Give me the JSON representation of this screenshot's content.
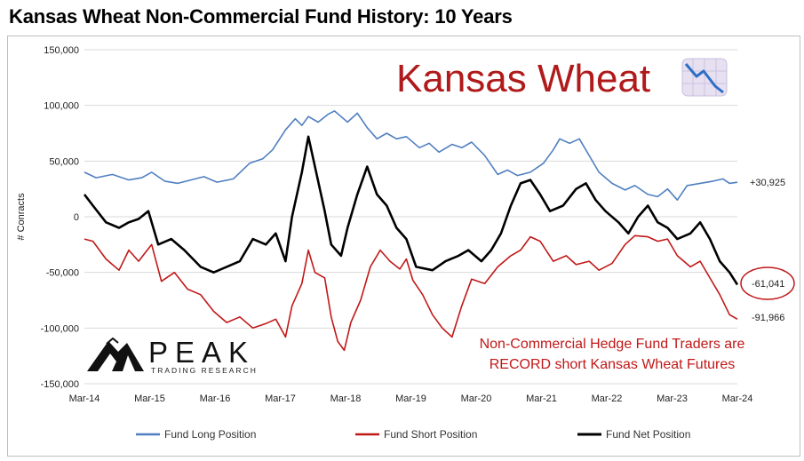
{
  "page": {
    "title": "Kansas Wheat Non-Commercial Fund History: 10 Years"
  },
  "colors": {
    "long": "#4f7fc0",
    "short": "#c01818",
    "net": "#000000",
    "accent_red": "#b01a1a",
    "grid": "#d9d9d9"
  },
  "chart_data": {
    "type": "line",
    "title": "Kansas Wheat Non-Commercial Fund History: 10 Years",
    "xlabel": "",
    "ylabel": "# Conracts",
    "x_tick_labels": [
      "Mar-14",
      "Mar-15",
      "Mar-16",
      "Mar-17",
      "Mar-18",
      "Mar-19",
      "Mar-20",
      "Mar-21",
      "Mar-22",
      "Mar-23",
      "Mar-24"
    ],
    "x_range": [
      2014.17,
      2024.17
    ],
    "y_ticks": [
      150000,
      100000,
      50000,
      0,
      -50000,
      -100000,
      -150000
    ],
    "y_tick_labels": [
      "150,000",
      "100,000",
      "50,000",
      "0",
      "-50,000",
      "-100,000",
      "-150,000"
    ],
    "ylim": [
      -150000,
      150000
    ],
    "grid": "horizontal",
    "legend_position": "bottom",
    "series": [
      {
        "name": "Fund Long Position",
        "color": "#4f7fc0",
        "points": [
          [
            2014.17,
            40000
          ],
          [
            2014.35,
            35000
          ],
          [
            2014.6,
            38000
          ],
          [
            2014.85,
            33000
          ],
          [
            2015.05,
            35000
          ],
          [
            2015.2,
            40000
          ],
          [
            2015.4,
            32000
          ],
          [
            2015.6,
            30000
          ],
          [
            2015.8,
            33000
          ],
          [
            2016.0,
            36000
          ],
          [
            2016.2,
            31000
          ],
          [
            2016.45,
            34000
          ],
          [
            2016.7,
            48000
          ],
          [
            2016.9,
            52000
          ],
          [
            2017.05,
            60000
          ],
          [
            2017.25,
            78000
          ],
          [
            2017.4,
            88000
          ],
          [
            2017.5,
            82000
          ],
          [
            2017.6,
            90000
          ],
          [
            2017.75,
            85000
          ],
          [
            2017.9,
            92000
          ],
          [
            2018.0,
            95000
          ],
          [
            2018.2,
            85000
          ],
          [
            2018.35,
            93000
          ],
          [
            2018.5,
            80000
          ],
          [
            2018.65,
            70000
          ],
          [
            2018.8,
            75000
          ],
          [
            2018.95,
            70000
          ],
          [
            2019.1,
            72000
          ],
          [
            2019.3,
            62000
          ],
          [
            2019.45,
            66000
          ],
          [
            2019.6,
            58000
          ],
          [
            2019.8,
            65000
          ],
          [
            2019.95,
            62000
          ],
          [
            2020.1,
            67000
          ],
          [
            2020.3,
            55000
          ],
          [
            2020.5,
            38000
          ],
          [
            2020.65,
            42000
          ],
          [
            2020.8,
            37000
          ],
          [
            2021.0,
            40000
          ],
          [
            2021.2,
            48000
          ],
          [
            2021.35,
            60000
          ],
          [
            2021.45,
            70000
          ],
          [
            2021.6,
            66000
          ],
          [
            2021.75,
            70000
          ],
          [
            2021.9,
            55000
          ],
          [
            2022.05,
            40000
          ],
          [
            2022.25,
            30000
          ],
          [
            2022.45,
            24000
          ],
          [
            2022.6,
            28000
          ],
          [
            2022.8,
            20000
          ],
          [
            2022.95,
            18000
          ],
          [
            2023.1,
            25000
          ],
          [
            2023.25,
            15000
          ],
          [
            2023.4,
            28000
          ],
          [
            2023.6,
            30000
          ],
          [
            2023.8,
            32000
          ],
          [
            2023.95,
            34000
          ],
          [
            2024.05,
            30000
          ],
          [
            2024.17,
            30925
          ]
        ]
      },
      {
        "name": "Fund Short Position",
        "color": "#c01818",
        "points": [
          [
            2014.17,
            -20000
          ],
          [
            2014.3,
            -22000
          ],
          [
            2014.5,
            -38000
          ],
          [
            2014.7,
            -48000
          ],
          [
            2014.85,
            -30000
          ],
          [
            2015.0,
            -40000
          ],
          [
            2015.2,
            -25000
          ],
          [
            2015.35,
            -58000
          ],
          [
            2015.55,
            -50000
          ],
          [
            2015.75,
            -65000
          ],
          [
            2015.95,
            -70000
          ],
          [
            2016.15,
            -85000
          ],
          [
            2016.35,
            -95000
          ],
          [
            2016.55,
            -90000
          ],
          [
            2016.75,
            -100000
          ],
          [
            2016.95,
            -96000
          ],
          [
            2017.1,
            -92000
          ],
          [
            2017.25,
            -108000
          ],
          [
            2017.35,
            -80000
          ],
          [
            2017.5,
            -60000
          ],
          [
            2017.6,
            -30000
          ],
          [
            2017.7,
            -50000
          ],
          [
            2017.85,
            -55000
          ],
          [
            2017.95,
            -90000
          ],
          [
            2018.05,
            -112000
          ],
          [
            2018.15,
            -120000
          ],
          [
            2018.25,
            -95000
          ],
          [
            2018.4,
            -75000
          ],
          [
            2018.55,
            -45000
          ],
          [
            2018.7,
            -30000
          ],
          [
            2018.85,
            -40000
          ],
          [
            2019.0,
            -47000
          ],
          [
            2019.1,
            -38000
          ],
          [
            2019.2,
            -57000
          ],
          [
            2019.35,
            -70000
          ],
          [
            2019.5,
            -88000
          ],
          [
            2019.65,
            -100000
          ],
          [
            2019.8,
            -108000
          ],
          [
            2019.95,
            -80000
          ],
          [
            2020.1,
            -56000
          ],
          [
            2020.3,
            -60000
          ],
          [
            2020.5,
            -45000
          ],
          [
            2020.7,
            -35000
          ],
          [
            2020.85,
            -30000
          ],
          [
            2021.0,
            -18000
          ],
          [
            2021.15,
            -22000
          ],
          [
            2021.35,
            -40000
          ],
          [
            2021.55,
            -35000
          ],
          [
            2021.7,
            -43000
          ],
          [
            2021.9,
            -40000
          ],
          [
            2022.05,
            -48000
          ],
          [
            2022.25,
            -42000
          ],
          [
            2022.45,
            -25000
          ],
          [
            2022.6,
            -17000
          ],
          [
            2022.8,
            -18000
          ],
          [
            2022.95,
            -22000
          ],
          [
            2023.1,
            -20000
          ],
          [
            2023.25,
            -35000
          ],
          [
            2023.45,
            -45000
          ],
          [
            2023.6,
            -40000
          ],
          [
            2023.75,
            -55000
          ],
          [
            2023.9,
            -70000
          ],
          [
            2024.05,
            -88000
          ],
          [
            2024.17,
            -91966
          ]
        ]
      },
      {
        "name": "Fund Net Position",
        "color": "#000000",
        "points": [
          [
            2014.17,
            20000
          ],
          [
            2014.3,
            10000
          ],
          [
            2014.5,
            -5000
          ],
          [
            2014.7,
            -10000
          ],
          [
            2014.85,
            -5000
          ],
          [
            2015.0,
            -2000
          ],
          [
            2015.15,
            5000
          ],
          [
            2015.3,
            -25000
          ],
          [
            2015.5,
            -20000
          ],
          [
            2015.7,
            -30000
          ],
          [
            2015.95,
            -45000
          ],
          [
            2016.15,
            -50000
          ],
          [
            2016.35,
            -45000
          ],
          [
            2016.55,
            -40000
          ],
          [
            2016.75,
            -20000
          ],
          [
            2016.95,
            -25000
          ],
          [
            2017.1,
            -15000
          ],
          [
            2017.25,
            -40000
          ],
          [
            2017.35,
            0
          ],
          [
            2017.5,
            40000
          ],
          [
            2017.6,
            72000
          ],
          [
            2017.72,
            40000
          ],
          [
            2017.85,
            5000
          ],
          [
            2017.95,
            -25000
          ],
          [
            2018.1,
            -35000
          ],
          [
            2018.2,
            -10000
          ],
          [
            2018.35,
            20000
          ],
          [
            2018.5,
            45000
          ],
          [
            2018.65,
            20000
          ],
          [
            2018.8,
            10000
          ],
          [
            2018.95,
            -10000
          ],
          [
            2019.1,
            -20000
          ],
          [
            2019.25,
            -45000
          ],
          [
            2019.5,
            -48000
          ],
          [
            2019.7,
            -40000
          ],
          [
            2019.9,
            -35000
          ],
          [
            2020.05,
            -30000
          ],
          [
            2020.25,
            -40000
          ],
          [
            2020.4,
            -30000
          ],
          [
            2020.55,
            -15000
          ],
          [
            2020.7,
            10000
          ],
          [
            2020.85,
            30000
          ],
          [
            2021.0,
            33000
          ],
          [
            2021.15,
            20000
          ],
          [
            2021.3,
            5000
          ],
          [
            2021.5,
            10000
          ],
          [
            2021.7,
            25000
          ],
          [
            2021.85,
            30000
          ],
          [
            2022.0,
            15000
          ],
          [
            2022.15,
            5000
          ],
          [
            2022.35,
            -5000
          ],
          [
            2022.5,
            -15000
          ],
          [
            2022.65,
            0
          ],
          [
            2022.8,
            10000
          ],
          [
            2022.95,
            -5000
          ],
          [
            2023.1,
            -10000
          ],
          [
            2023.25,
            -20000
          ],
          [
            2023.45,
            -15000
          ],
          [
            2023.6,
            -5000
          ],
          [
            2023.75,
            -20000
          ],
          [
            2023.9,
            -40000
          ],
          [
            2024.05,
            -50000
          ],
          [
            2024.17,
            -61041
          ]
        ]
      }
    ],
    "end_labels": [
      {
        "series": "Fund Long Position",
        "label": "+30,925"
      },
      {
        "series": "Fund Net Position",
        "label": "-61,041"
      },
      {
        "series": "Fund Short Position",
        "label": "-91,966"
      }
    ],
    "annotations": {
      "headline": "Kansas Wheat",
      "note_line1": "Non-Commercial Hedge Fund Traders are",
      "note_line2": "RECORD short Kansas Wheat Futures",
      "brand": "PEAK",
      "brand_sub": "TRADING RESEARCH"
    }
  }
}
